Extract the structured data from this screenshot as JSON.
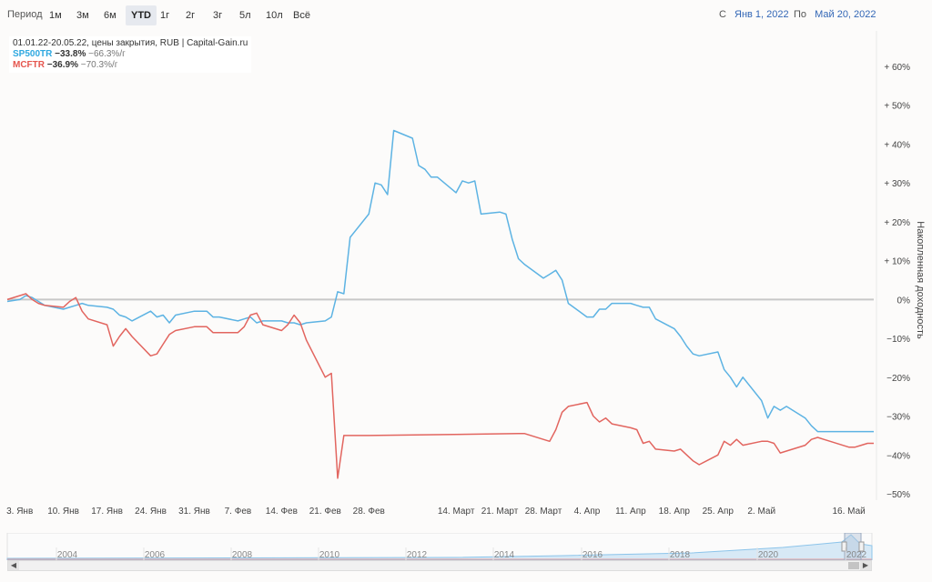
{
  "toolbar": {
    "period_label": "Период",
    "ranges": [
      "1м",
      "3м",
      "6м",
      "YTD",
      "1г",
      "2г",
      "3г",
      "5л",
      "10л",
      "Всё"
    ],
    "active_range": "YTD",
    "from_label": "С",
    "from_value": "Янв 1, 2022",
    "to_label": "По",
    "to_value": "Май 20, 2022"
  },
  "legend": {
    "header": "01.01.22-20.05.22, цены закрытия, RUB | Capital-Gain.ru",
    "items": [
      {
        "name": "SP500TR",
        "change": "−33.8%",
        "annual": "−66.3%/г",
        "color": "#2ea8e0"
      },
      {
        "name": "MCFTR",
        "change": "−36.9%",
        "annual": "−70.3%/г",
        "color": "#e5554d"
      }
    ]
  },
  "colors": {
    "sp500": "#5db3e3",
    "mcftr": "#e2655f",
    "zero_line": "#c8c8c8",
    "nav_fill": "#d7e9f6",
    "active_btn": "#e6e9ef"
  },
  "chart_data": {
    "type": "line",
    "ylabel": "Накопленная доходность",
    "y_ticks": [
      "+ 60%",
      "+ 50%",
      "+ 40%",
      "+ 30%",
      "+ 20%",
      "+ 10%",
      "0%",
      "−10%",
      "−20%",
      "−30%",
      "−40%",
      "−50%"
    ],
    "ylim": [
      -50,
      60
    ],
    "x_tick_labels": [
      "3. Янв",
      "10. Янв",
      "17. Янв",
      "24. Янв",
      "31. Янв",
      "7. Фев",
      "14. Фев",
      "21. Фев",
      "28. Фев",
      "14. Март",
      "21. Март",
      "28. Март",
      "4. Апр",
      "11. Апр",
      "18. Апр",
      "25. Апр",
      "2. Май",
      "16. Май"
    ],
    "x_ticks": [
      "2022-01-03",
      "2022-01-10",
      "2022-01-17",
      "2022-01-24",
      "2022-01-31",
      "2022-02-07",
      "2022-02-14",
      "2022-02-21",
      "2022-02-28",
      "2022-03-14",
      "2022-03-21",
      "2022-03-28",
      "2022-04-04",
      "2022-04-11",
      "2022-04-18",
      "2022-04-25",
      "2022-05-02",
      "2022-05-16"
    ],
    "xlim": [
      "2022-01-01",
      "2022-05-20"
    ],
    "grid": false,
    "series": [
      {
        "name": "SP500TR",
        "x": [
          "2022-01-01",
          "2022-01-03",
          "2022-01-04",
          "2022-01-05",
          "2022-01-06",
          "2022-01-07",
          "2022-01-10",
          "2022-01-11",
          "2022-01-12",
          "2022-01-13",
          "2022-01-14",
          "2022-01-17",
          "2022-01-18",
          "2022-01-19",
          "2022-01-20",
          "2022-01-21",
          "2022-01-24",
          "2022-01-25",
          "2022-01-26",
          "2022-01-27",
          "2022-01-28",
          "2022-01-31",
          "2022-02-01",
          "2022-02-02",
          "2022-02-03",
          "2022-02-04",
          "2022-02-07",
          "2022-02-08",
          "2022-02-09",
          "2022-02-10",
          "2022-02-11",
          "2022-02-14",
          "2022-02-15",
          "2022-02-16",
          "2022-02-17",
          "2022-02-18",
          "2022-02-21",
          "2022-02-22",
          "2022-02-23",
          "2022-02-24",
          "2022-02-25",
          "2022-02-28",
          "2022-03-01",
          "2022-03-02",
          "2022-03-03",
          "2022-03-04",
          "2022-03-07",
          "2022-03-08",
          "2022-03-09",
          "2022-03-10",
          "2022-03-11",
          "2022-03-14",
          "2022-03-15",
          "2022-03-16",
          "2022-03-17",
          "2022-03-18",
          "2022-03-21",
          "2022-03-22",
          "2022-03-23",
          "2022-03-24",
          "2022-03-25",
          "2022-03-28",
          "2022-03-29",
          "2022-03-30",
          "2022-03-31",
          "2022-04-01",
          "2022-04-04",
          "2022-04-05",
          "2022-04-06",
          "2022-04-07",
          "2022-04-08",
          "2022-04-11",
          "2022-04-12",
          "2022-04-13",
          "2022-04-14",
          "2022-04-15",
          "2022-04-18",
          "2022-04-19",
          "2022-04-20",
          "2022-04-21",
          "2022-04-22",
          "2022-04-25",
          "2022-04-26",
          "2022-04-27",
          "2022-04-28",
          "2022-04-29",
          "2022-05-02",
          "2022-05-03",
          "2022-05-04",
          "2022-05-05",
          "2022-05-06",
          "2022-05-09",
          "2022-05-10",
          "2022-05-11",
          "2022-05-12",
          "2022-05-13",
          "2022-05-16",
          "2022-05-17",
          "2022-05-18",
          "2022-05-19",
          "2022-05-20"
        ],
        "y": [
          -0.5,
          0,
          1,
          0.5,
          -0.5,
          -1.5,
          -2.5,
          -2,
          -1.5,
          -1,
          -1.5,
          -2,
          -2.5,
          -4,
          -4.5,
          -5.5,
          -3,
          -4.5,
          -4,
          -6,
          -4,
          -3,
          -3,
          -3,
          -4.5,
          -4.5,
          -5.5,
          -5,
          -4.5,
          -6,
          -5.5,
          -5.5,
          -6,
          -6,
          -6.5,
          -6,
          -5.5,
          -4.5,
          2,
          1.5,
          16,
          22,
          30,
          29.5,
          27,
          43.5,
          41.5,
          34.5,
          33.5,
          31.5,
          31.5,
          27.5,
          30.5,
          30,
          30.5,
          22,
          22.5,
          22,
          15.5,
          10.5,
          9,
          5.5,
          6.5,
          7.5,
          5,
          -1,
          -4.5,
          -4.5,
          -2.5,
          -2.5,
          -1,
          -1,
          -1.5,
          -2,
          -2,
          -5,
          -7.5,
          -9.5,
          -12,
          -14,
          -14.5,
          -13.5,
          -18,
          -20,
          -22.5,
          -20,
          -26,
          -30.5,
          -27.5,
          -28.5,
          -27.5,
          -30.5,
          -32.5,
          -34,
          -34,
          -34,
          -34,
          -34,
          -34,
          -34,
          -34
        ]
      },
      {
        "name": "MCFTR",
        "x": [
          "2022-01-01",
          "2022-01-03",
          "2022-01-04",
          "2022-01-05",
          "2022-01-06",
          "2022-01-07",
          "2022-01-10",
          "2022-01-11",
          "2022-01-12",
          "2022-01-13",
          "2022-01-14",
          "2022-01-17",
          "2022-01-18",
          "2022-01-19",
          "2022-01-20",
          "2022-01-21",
          "2022-01-24",
          "2022-01-25",
          "2022-01-26",
          "2022-01-27",
          "2022-01-28",
          "2022-01-31",
          "2022-02-01",
          "2022-02-02",
          "2022-02-03",
          "2022-02-04",
          "2022-02-07",
          "2022-02-08",
          "2022-02-09",
          "2022-02-10",
          "2022-02-11",
          "2022-02-14",
          "2022-02-15",
          "2022-02-16",
          "2022-02-17",
          "2022-02-18",
          "2022-02-21",
          "2022-02-22",
          "2022-02-23",
          "2022-02-24",
          "2022-02-25",
          "2022-02-28",
          "2022-03-24",
          "2022-03-25",
          "2022-03-28",
          "2022-03-29",
          "2022-03-30",
          "2022-03-31",
          "2022-04-01",
          "2022-04-04",
          "2022-04-05",
          "2022-04-06",
          "2022-04-07",
          "2022-04-08",
          "2022-04-11",
          "2022-04-12",
          "2022-04-13",
          "2022-04-14",
          "2022-04-15",
          "2022-04-18",
          "2022-04-19",
          "2022-04-20",
          "2022-04-21",
          "2022-04-22",
          "2022-04-25",
          "2022-04-26",
          "2022-04-27",
          "2022-04-28",
          "2022-04-29",
          "2022-05-02",
          "2022-05-03",
          "2022-05-04",
          "2022-05-05",
          "2022-05-06",
          "2022-05-09",
          "2022-05-10",
          "2022-05-11",
          "2022-05-12",
          "2022-05-13",
          "2022-05-16",
          "2022-05-17",
          "2022-05-18",
          "2022-05-19",
          "2022-05-20"
        ],
        "y": [
          0,
          1,
          1.5,
          0,
          -1,
          -1.5,
          -2,
          -0.5,
          0.5,
          -3,
          -5,
          -6.5,
          -12,
          -9.5,
          -7.5,
          -9.5,
          -14.5,
          -14,
          -11.5,
          -9,
          -8,
          -7,
          -7,
          -7,
          -8.5,
          -8.5,
          -8.5,
          -7,
          -4,
          -3.5,
          -6.5,
          -8,
          -6.5,
          -4,
          -6,
          -10.5,
          -20,
          -19,
          -46,
          -35,
          -35,
          -35,
          -34.5,
          -34.5,
          -36,
          -36.5,
          -33.5,
          -29,
          -27.5,
          -26.5,
          -30,
          -31.5,
          -30.5,
          -32,
          -33,
          -33.5,
          -37,
          -36.5,
          -38.5,
          -39,
          -38.5,
          -40,
          -41.5,
          -42.5,
          -40,
          -36.5,
          -37.5,
          -36,
          -37.5,
          -36.5,
          -36.5,
          -37,
          -39.5,
          -39,
          -37.5,
          -36,
          -35.5,
          -36,
          -36.5,
          -38,
          -38,
          -37.5,
          -37,
          -37
        ]
      }
    ]
  },
  "navigator": {
    "years": [
      "2004",
      "2006",
      "2008",
      "2010",
      "2012",
      "2014",
      "2016",
      "2018",
      "2020",
      "2022"
    ]
  }
}
